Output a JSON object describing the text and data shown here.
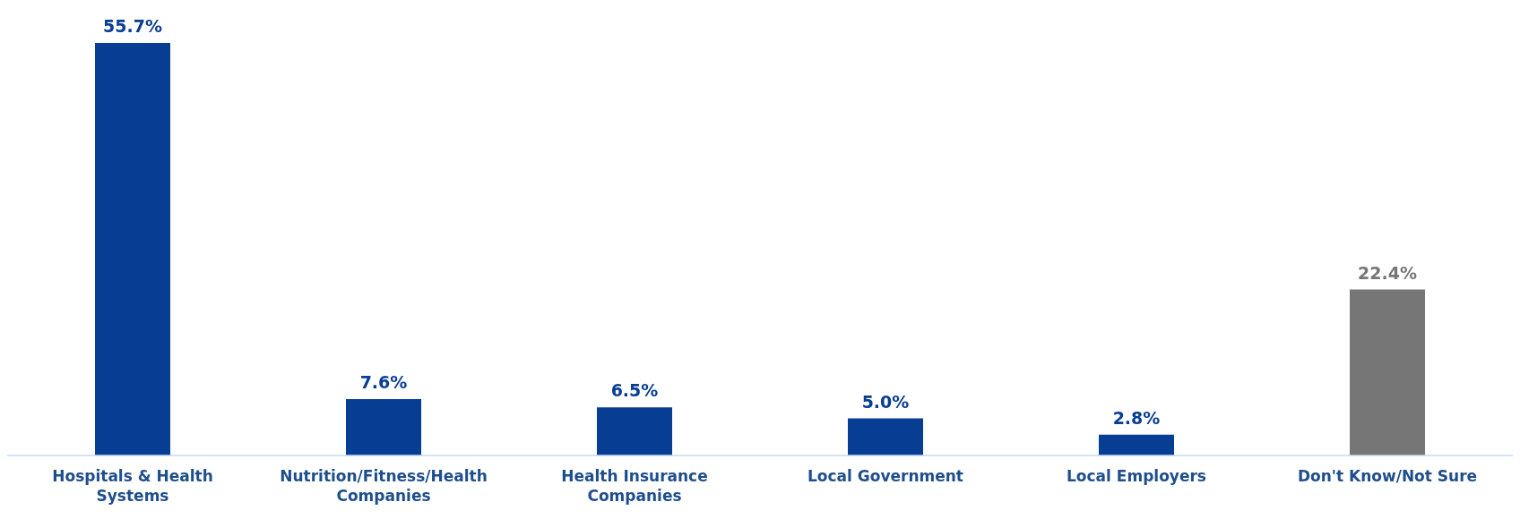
{
  "chart_data": {
    "type": "bar",
    "categories": [
      "Hospitals & Health Systems",
      "Nutrition/Fitness/Health Companies",
      "Health Insurance Companies",
      "Local Government",
      "Local Employers",
      "Don't Know/Not Sure"
    ],
    "values": [
      55.7,
      7.6,
      6.5,
      5.0,
      2.8,
      22.4
    ],
    "colors": [
      "#083d94",
      "#083d94",
      "#083d94",
      "#083d94",
      "#083d94",
      "#767676"
    ],
    "value_labels": [
      "55.7%",
      "7.6%",
      "6.5%",
      "5.0%",
      "2.8%",
      "22.4%"
    ],
    "tick_labels": "x"
  }
}
